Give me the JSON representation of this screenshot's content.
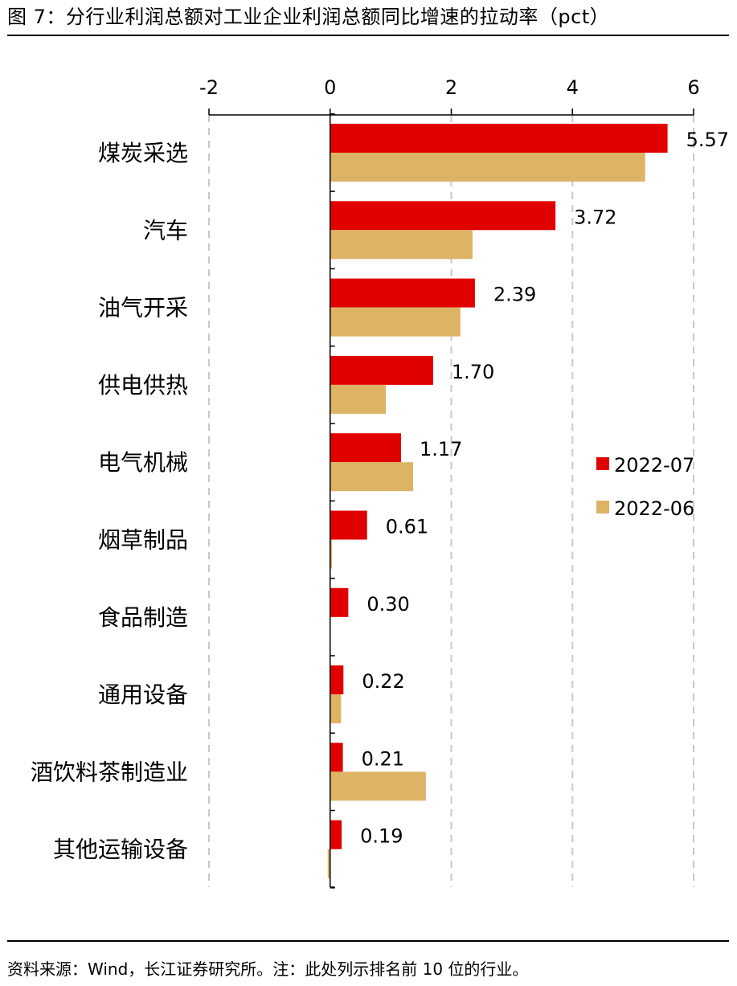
{
  "figure": {
    "title": "图 7：分行业利润总额对工业企业利润总额同比增速的拉动率（pct）",
    "source": "资料来源：Wind，长江证券研究所。注：此处列示排名前 10 位的行业。"
  },
  "chart_data": {
    "type": "bar",
    "orientation": "horizontal",
    "categories": [
      "煤炭采选",
      "汽车",
      "油气开采",
      "供电供热",
      "电气机械",
      "烟草制品",
      "食品制造",
      "通用设备",
      "酒饮料茶制造业",
      "其他运输设备"
    ],
    "series": [
      {
        "name": "2022-07",
        "color": "#e00000",
        "values": [
          5.57,
          3.72,
          2.39,
          1.7,
          1.17,
          0.61,
          0.3,
          0.22,
          0.21,
          0.19
        ],
        "labels": [
          "5.57",
          "3.72",
          "2.39",
          "1.70",
          "1.17",
          "0.61",
          "0.30",
          "0.22",
          "0.21",
          "0.19"
        ]
      },
      {
        "name": "2022-06",
        "color": "#ddb365",
        "values": [
          5.2,
          2.35,
          2.15,
          0.92,
          1.37,
          0.03,
          0.0,
          0.18,
          1.58,
          -0.04
        ]
      }
    ],
    "xlim": [
      -2,
      6
    ],
    "xticks": [
      -2,
      0,
      2,
      4,
      6
    ],
    "xtick_labels": [
      "-2",
      "0",
      "2",
      "4",
      "6"
    ],
    "x_axis_position": "top",
    "grid": "vertical dashed",
    "legend_position": "right"
  }
}
